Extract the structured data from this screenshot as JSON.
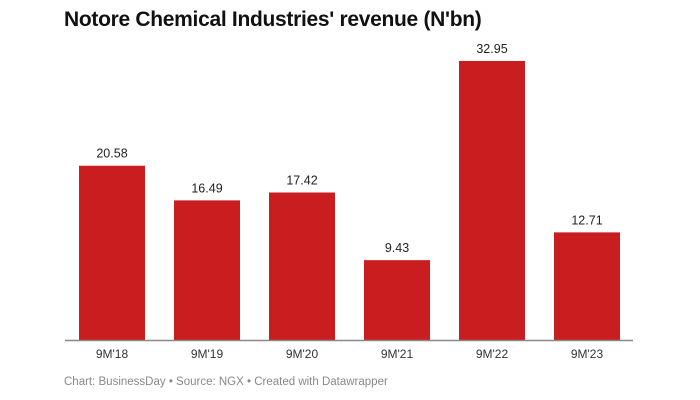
{
  "chart_data": {
    "type": "bar",
    "title": "Notore Chemical Industries' revenue (N'bn)",
    "categories": [
      "9M'18",
      "9M'19",
      "9M'20",
      "9M'21",
      "9M'22",
      "9M'23"
    ],
    "values": [
      20.58,
      16.49,
      17.42,
      9.43,
      32.95,
      12.71
    ],
    "value_labels": [
      "20.58",
      "16.49",
      "17.42",
      "9.43",
      "32.95",
      "12.71"
    ],
    "xlabel": "",
    "ylabel": "",
    "ylim": [
      0,
      32.95
    ],
    "grid": false,
    "bar_color": "#c91d1f",
    "footer": "Chart: BusinessDay • Source: NGX • Created with Datawrapper"
  }
}
